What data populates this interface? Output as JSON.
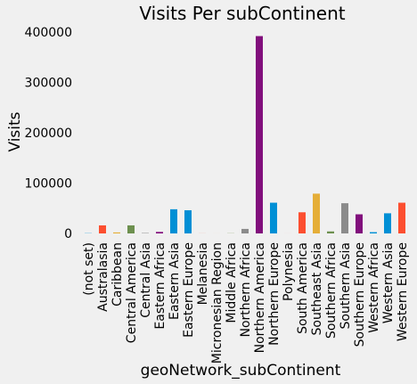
{
  "chart_data": {
    "type": "bar",
    "title": "Visits Per subContinent",
    "xlabel": "geoNetwork_subContinent",
    "ylabel": "Visits",
    "ylim": [
      0,
      400000
    ],
    "yticks": [
      0,
      100000,
      200000,
      300000,
      400000
    ],
    "grid": false,
    "categories": [
      "(not set)",
      "Australasia",
      "Caribbean",
      "Central America",
      "Central Asia",
      "Eastern Africa",
      "Eastern Asia",
      "Eastern Europe",
      "Melanesia",
      "Micronesian Region",
      "Middle Africa",
      "Northern Africa",
      "Northern America",
      "Northern Europe",
      "Polynesia",
      "South America",
      "Southeast Asia",
      "Southern Africa",
      "Southern Asia",
      "Southern Europe",
      "Western Africa",
      "Western Asia",
      "Western Europe"
    ],
    "values": [
      400,
      16000,
      2000,
      16000,
      800,
      3000,
      48000,
      46000,
      100,
      30,
      300,
      9000,
      392000,
      61000,
      30,
      42000,
      79000,
      4000,
      60000,
      38000,
      2500,
      40000,
      61000
    ],
    "colors": [
      "#008fd5",
      "#fc4f30",
      "#e5ae38",
      "#6d904f",
      "#8b8b8b",
      "#810f7c",
      "#008fd5",
      "#008fd5",
      "#fc4f30",
      "#e5ae38",
      "#6d904f",
      "#8b8b8b",
      "#810f7c",
      "#008fd5",
      "#fc4f30",
      "#fc4f30",
      "#e5ae38",
      "#6d904f",
      "#8b8b8b",
      "#810f7c",
      "#008fd5",
      "#008fd5",
      "#fc4f30"
    ]
  }
}
